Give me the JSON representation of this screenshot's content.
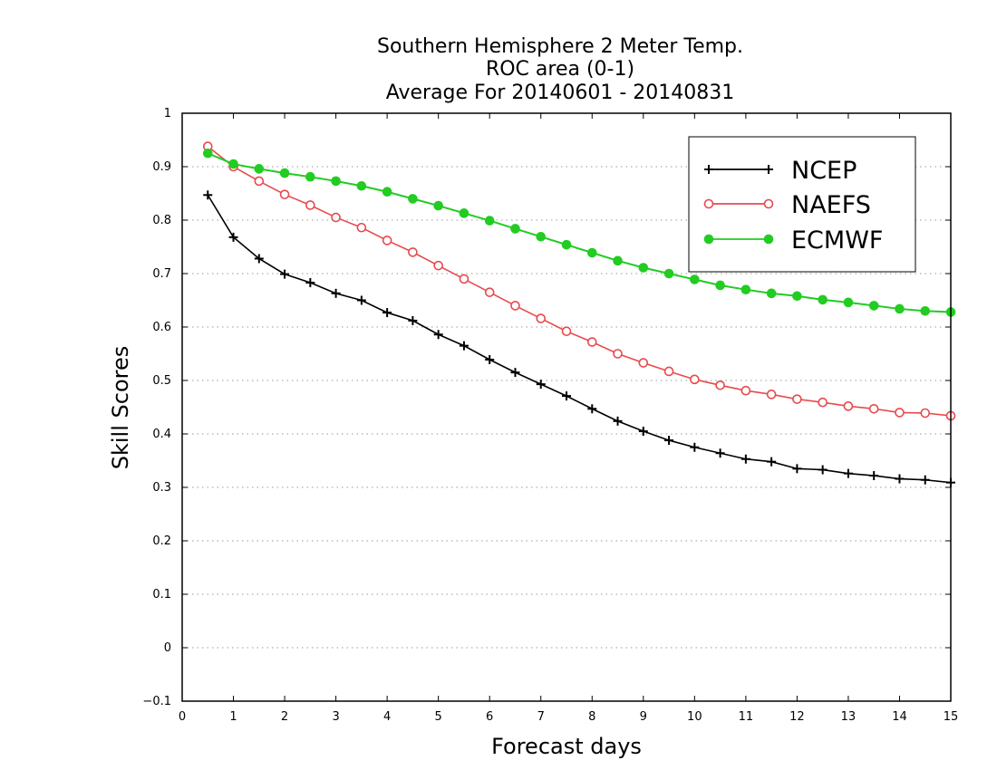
{
  "colors": {
    "ncep": "#000000",
    "naefs": "#e8494d",
    "ecmwf": "#22cc22",
    "grid": "#9a9a9a",
    "frame": "#000000"
  },
  "chart_data": {
    "type": "line",
    "title": [
      "Southern Hemisphere 2 Meter Temp.",
      "ROC area (0-1)",
      "Average For 20140601 - 20140831"
    ],
    "xlabel": "Forecast days",
    "ylabel": "Skill Scores",
    "xlim": [
      0,
      15
    ],
    "ylim": [
      -0.1,
      1
    ],
    "x_ticks": [
      "0",
      "1",
      "2",
      "3",
      "4",
      "5",
      "6",
      "7",
      "8",
      "9",
      "10",
      "11",
      "12",
      "13",
      "14",
      "15"
    ],
    "y_ticks": [
      "−0.1",
      "0",
      "0.1",
      "0.2",
      "0.3",
      "0.4",
      "0.5",
      "0.6",
      "0.7",
      "0.8",
      "0.9",
      "1"
    ],
    "y_tick_values": [
      -0.1,
      0,
      0.1,
      0.2,
      0.3,
      0.4,
      0.5,
      0.6,
      0.7,
      0.8,
      0.9,
      1
    ],
    "grid": "horizontal dotted",
    "legend_position": "top-right",
    "x": [
      0.5,
      1,
      1.5,
      2,
      2.5,
      3,
      3.5,
      4,
      4.5,
      5,
      5.5,
      6,
      6.5,
      7,
      7.5,
      8,
      8.5,
      9,
      9.5,
      10,
      10.5,
      11,
      11.5,
      12,
      12.5,
      13,
      13.5,
      14,
      14.5,
      15
    ],
    "series": [
      {
        "name": "NCEP",
        "marker": "plus",
        "values": [
          0.847,
          0.768,
          0.728,
          0.699,
          0.683,
          0.663,
          0.65,
          0.627,
          0.612,
          0.586,
          0.565,
          0.539,
          0.515,
          0.493,
          0.471,
          0.447,
          0.424,
          0.405,
          0.388,
          0.375,
          0.364,
          0.353,
          0.348,
          0.335,
          0.333,
          0.326,
          0.322,
          0.316,
          0.314,
          0.309
        ]
      },
      {
        "name": "NAEFS",
        "marker": "open-circle",
        "values": [
          0.938,
          0.9,
          0.873,
          0.848,
          0.828,
          0.805,
          0.786,
          0.762,
          0.74,
          0.715,
          0.69,
          0.665,
          0.64,
          0.616,
          0.592,
          0.572,
          0.55,
          0.533,
          0.517,
          0.502,
          0.491,
          0.481,
          0.474,
          0.465,
          0.459,
          0.452,
          0.447,
          0.44,
          0.439,
          0.434
        ]
      },
      {
        "name": "ECMWF",
        "marker": "filled-circle",
        "values": [
          0.925,
          0.905,
          0.896,
          0.888,
          0.881,
          0.873,
          0.864,
          0.853,
          0.84,
          0.827,
          0.813,
          0.799,
          0.784,
          0.769,
          0.754,
          0.739,
          0.724,
          0.711,
          0.7,
          0.689,
          0.678,
          0.67,
          0.663,
          0.658,
          0.651,
          0.646,
          0.64,
          0.634,
          0.63,
          0.628
        ]
      }
    ]
  }
}
